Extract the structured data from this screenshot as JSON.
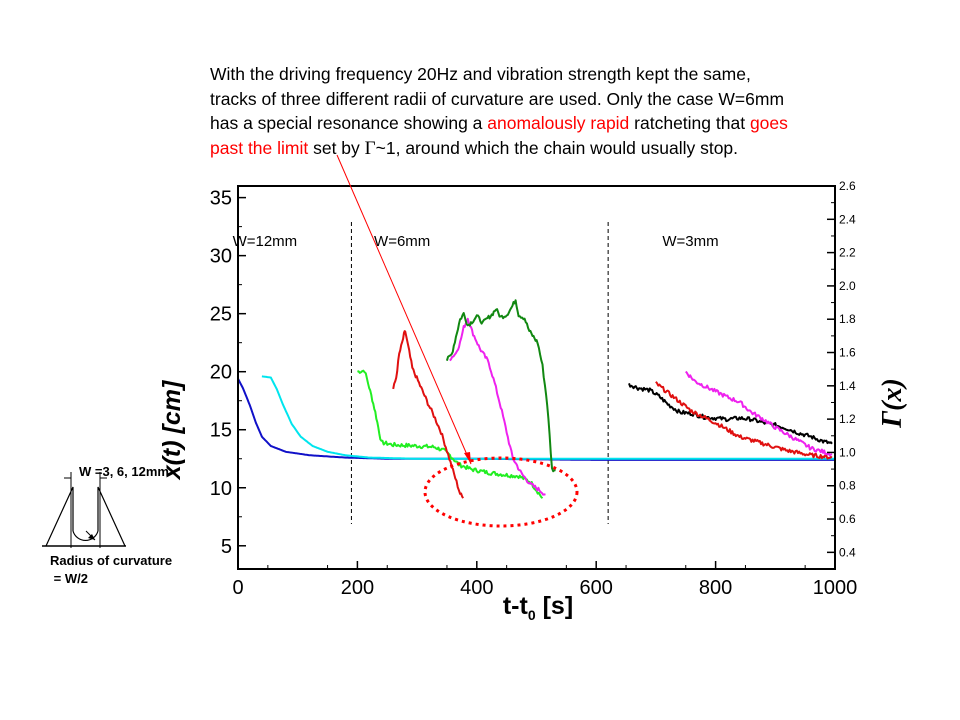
{
  "caption": {
    "line1": "With the driving frequency 20Hz and vibration strength kept the same,",
    "line2": "tracks of three different radii of curvature are used. Only the case  W=6mm",
    "line3_a": "has a special resonance showing a ",
    "line3_red1": "anomalously rapid",
    "line3_b": " ratcheting that ",
    "line3_red2": "goes",
    "line4_red": "past the limit",
    "line4_a": " set by ",
    "line4_sym": "Γ",
    "line4_b": "~1, around which the chain would usually stop."
  },
  "inset": {
    "width_label": "W =3, 6, 12mm",
    "radius_label": "Radius of curvature",
    "radius_value": " = W/2"
  },
  "colors": {
    "blue": "#1010c8",
    "cyan": "#00e5ee",
    "green": "#22ee22",
    "red": "#e01010",
    "magenta": "#ee22ee",
    "darkgreen": "#118811",
    "black": "#000000",
    "annotation": "#ff0000"
  },
  "chart_data": {
    "type": "line",
    "xlabel": "t-t",
    "xlabel_sub": "0",
    "xlabel_unit": " [s]",
    "ylabel": "x(t) [cm]",
    "y2label": "Γ(x)",
    "xlim": [
      0,
      1000
    ],
    "ylim": [
      3,
      36
    ],
    "y2lim": [
      0.3,
      2.6
    ],
    "x_ticks": [
      "0",
      "200",
      "400",
      "600",
      "800",
      "1000"
    ],
    "y_ticks": [
      "5",
      "10",
      "15",
      "20",
      "25",
      "30",
      "35"
    ],
    "y2_ticks": [
      "0.4",
      "0.6",
      "0.8",
      "1.0",
      "1.2",
      "1.4",
      "1.6",
      "1.8",
      "2.0",
      "2.2",
      "2.4",
      "2.6"
    ],
    "regions": [
      {
        "label": "W=12mm",
        "x": 45
      },
      {
        "label": "W=6mm",
        "x": 275
      },
      {
        "label": "W=3mm",
        "x": 758
      }
    ],
    "dividers_x": [
      190,
      620
    ],
    "series": [
      {
        "color": "blue",
        "points": [
          [
            0,
            19.4
          ],
          [
            8,
            18.6
          ],
          [
            20,
            17.1
          ],
          [
            30,
            15.6
          ],
          [
            40,
            14.4
          ],
          [
            55,
            13.6
          ],
          [
            80,
            13.1
          ],
          [
            120,
            12.8
          ],
          [
            180,
            12.6
          ],
          [
            250,
            12.5
          ],
          [
            400,
            12.5
          ],
          [
            600,
            12.4
          ],
          [
            800,
            12.4
          ],
          [
            1000,
            12.4
          ]
        ]
      },
      {
        "color": "cyan",
        "points": [
          [
            40,
            19.6
          ],
          [
            55,
            19.5
          ],
          [
            65,
            18.5
          ],
          [
            75,
            17.2
          ],
          [
            90,
            15.5
          ],
          [
            105,
            14.4
          ],
          [
            125,
            13.6
          ],
          [
            150,
            13.1
          ],
          [
            180,
            12.8
          ],
          [
            220,
            12.6
          ],
          [
            300,
            12.5
          ],
          [
            400,
            12.5
          ],
          [
            600,
            12.5
          ],
          [
            800,
            12.5
          ],
          [
            1000,
            12.5
          ]
        ]
      },
      {
        "color": "green",
        "points": [
          [
            200,
            20.0
          ],
          [
            212,
            20.1
          ],
          [
            218,
            19.0
          ],
          [
            225,
            17.6
          ],
          [
            230,
            16.5
          ],
          [
            235,
            15.2
          ],
          [
            240,
            13.9
          ],
          [
            260,
            13.7
          ],
          [
            300,
            13.6
          ],
          [
            330,
            13.5
          ],
          [
            345,
            13.2
          ],
          [
            355,
            12.8
          ],
          [
            370,
            12.0
          ],
          [
            390,
            11.6
          ],
          [
            420,
            11.3
          ],
          [
            450,
            11.1
          ],
          [
            470,
            11.0
          ],
          [
            490,
            10.5
          ],
          [
            510,
            9.1
          ]
        ]
      },
      {
        "color": "red",
        "points": [
          [
            260,
            18.5
          ],
          [
            265,
            19.5
          ],
          [
            270,
            21.5
          ],
          [
            275,
            22.5
          ],
          [
            278,
            23.2
          ],
          [
            280,
            23.5
          ],
          [
            285,
            22.2
          ],
          [
            292,
            20.3
          ],
          [
            305,
            18.8
          ],
          [
            318,
            17.3
          ],
          [
            330,
            16.0
          ],
          [
            340,
            14.8
          ],
          [
            350,
            13.2
          ],
          [
            360,
            11.5
          ],
          [
            372,
            9.5
          ],
          [
            377,
            9.1
          ]
        ]
      },
      {
        "color": "magenta",
        "points": [
          [
            355,
            21.1
          ],
          [
            365,
            21.6
          ],
          [
            372,
            22.5
          ],
          [
            378,
            23.8
          ],
          [
            385,
            24.6
          ],
          [
            392,
            23.5
          ],
          [
            405,
            22.0
          ],
          [
            420,
            20.8
          ],
          [
            430,
            19.0
          ],
          [
            440,
            17.0
          ],
          [
            450,
            14.8
          ],
          [
            460,
            12.6
          ],
          [
            475,
            11.2
          ],
          [
            490,
            10.3
          ],
          [
            505,
            9.8
          ],
          [
            515,
            9.4
          ]
        ]
      },
      {
        "color": "darkgreen",
        "points": [
          [
            350,
            21.0
          ],
          [
            358,
            21.5
          ],
          [
            365,
            23.0
          ],
          [
            372,
            24.5
          ],
          [
            378,
            25.0
          ],
          [
            385,
            24.0
          ],
          [
            392,
            24.3
          ],
          [
            400,
            24.8
          ],
          [
            410,
            24.2
          ],
          [
            418,
            24.6
          ],
          [
            425,
            24.9
          ],
          [
            432,
            25.4
          ],
          [
            440,
            24.7
          ],
          [
            450,
            24.9
          ],
          [
            458,
            25.5
          ],
          [
            465,
            26.2
          ],
          [
            470,
            24.9
          ],
          [
            480,
            24.6
          ],
          [
            488,
            23.5
          ],
          [
            495,
            23.0
          ],
          [
            502,
            22.5
          ],
          [
            510,
            20.5
          ],
          [
            518,
            17.2
          ],
          [
            522,
            14.5
          ],
          [
            526,
            11.6
          ],
          [
            532,
            11.5
          ]
        ]
      },
      {
        "color": "black",
        "points": [
          [
            655,
            18.9
          ],
          [
            670,
            18.6
          ],
          [
            690,
            18.4
          ],
          [
            705,
            17.9
          ],
          [
            720,
            17.2
          ],
          [
            740,
            16.5
          ],
          [
            760,
            16.4
          ],
          [
            780,
            16.1
          ],
          [
            800,
            16.0
          ],
          [
            820,
            15.9
          ],
          [
            840,
            16.0
          ],
          [
            860,
            15.9
          ],
          [
            880,
            15.6
          ],
          [
            900,
            15.4
          ],
          [
            920,
            15.1
          ],
          [
            940,
            14.7
          ],
          [
            960,
            14.4
          ],
          [
            980,
            14.0
          ],
          [
            995,
            13.8
          ]
        ]
      },
      {
        "color": "red",
        "points": [
          [
            700,
            19.0
          ],
          [
            720,
            18.2
          ],
          [
            740,
            17.4
          ],
          [
            760,
            16.6
          ],
          [
            780,
            16.1
          ],
          [
            800,
            15.6
          ],
          [
            820,
            15.0
          ],
          [
            840,
            14.4
          ],
          [
            860,
            14.1
          ],
          [
            880,
            13.8
          ],
          [
            900,
            13.5
          ],
          [
            920,
            13.2
          ],
          [
            940,
            13.0
          ],
          [
            960,
            12.8
          ],
          [
            980,
            12.7
          ],
          [
            995,
            12.6
          ]
        ]
      },
      {
        "color": "magenta",
        "points": [
          [
            750,
            20.0
          ],
          [
            765,
            19.2
          ],
          [
            780,
            18.8
          ],
          [
            800,
            18.3
          ],
          [
            820,
            17.8
          ],
          [
            840,
            17.4
          ],
          [
            860,
            16.5
          ],
          [
            880,
            15.9
          ],
          [
            900,
            15.2
          ],
          [
            920,
            14.6
          ],
          [
            940,
            14.0
          ],
          [
            960,
            13.4
          ],
          [
            980,
            13.1
          ],
          [
            995,
            12.9
          ]
        ]
      }
    ]
  }
}
